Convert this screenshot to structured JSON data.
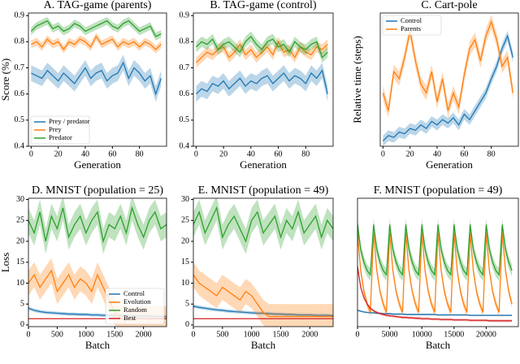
{
  "chart_data": [
    {
      "type": "line",
      "title": "A. TAG-game (parents)",
      "xlabel": "Generation",
      "ylabel": "Score (%)",
      "x": [
        0,
        4,
        8,
        12,
        16,
        20,
        24,
        28,
        32,
        36,
        40,
        44,
        48,
        52,
        56,
        60,
        64,
        68,
        72,
        76,
        80,
        84,
        88,
        92,
        96
      ],
      "xlim": [
        -2,
        100
      ],
      "xticks": [
        0,
        20,
        40,
        60,
        80
      ],
      "ylim": [
        0.4,
        0.91
      ],
      "yticks": [
        0.4,
        0.5,
        0.6,
        0.7,
        0.8,
        0.9
      ],
      "legend": "lower left",
      "series": [
        {
          "name": "Prey / predator",
          "color": "#1f77b4",
          "band": 0.03,
          "values": [
            0.68,
            0.67,
            0.66,
            0.69,
            0.67,
            0.65,
            0.68,
            0.66,
            0.64,
            0.67,
            0.7,
            0.66,
            0.68,
            0.69,
            0.65,
            0.67,
            0.68,
            0.72,
            0.66,
            0.7,
            0.68,
            0.65,
            0.67,
            0.6,
            0.66
          ]
        },
        {
          "name": "Prey",
          "color": "#ff7f0e",
          "band": 0.015,
          "values": [
            0.79,
            0.8,
            0.78,
            0.81,
            0.79,
            0.8,
            0.77,
            0.8,
            0.79,
            0.81,
            0.8,
            0.78,
            0.82,
            0.79,
            0.8,
            0.81,
            0.78,
            0.8,
            0.79,
            0.8,
            0.78,
            0.8,
            0.79,
            0.77,
            0.79
          ]
        },
        {
          "name": "Predator",
          "color": "#2ca02c",
          "band": 0.015,
          "values": [
            0.84,
            0.86,
            0.87,
            0.88,
            0.85,
            0.86,
            0.84,
            0.85,
            0.87,
            0.86,
            0.84,
            0.85,
            0.86,
            0.87,
            0.88,
            0.86,
            0.85,
            0.87,
            0.88,
            0.86,
            0.84,
            0.85,
            0.86,
            0.82,
            0.83
          ]
        }
      ]
    },
    {
      "type": "line",
      "title": "B. TAG-game (control)",
      "xlabel": "Generation",
      "x": [
        0,
        4,
        8,
        12,
        16,
        20,
        24,
        28,
        32,
        36,
        40,
        44,
        48,
        52,
        56,
        60,
        64,
        68,
        72,
        76,
        80,
        84,
        88,
        92,
        96
      ],
      "xlim": [
        -2,
        100
      ],
      "xticks": [
        0,
        20,
        40,
        60,
        80
      ],
      "ylim": [
        0.4,
        0.91
      ],
      "yticks": [
        0.4,
        0.5,
        0.6,
        0.7,
        0.8,
        0.9
      ],
      "series": [
        {
          "color": "#1f77b4",
          "band": 0.03,
          "values": [
            0.6,
            0.62,
            0.61,
            0.64,
            0.63,
            0.65,
            0.62,
            0.64,
            0.66,
            0.63,
            0.65,
            0.64,
            0.66,
            0.67,
            0.64,
            0.66,
            0.68,
            0.65,
            0.67,
            0.66,
            0.64,
            0.68,
            0.66,
            0.69,
            0.6
          ]
        },
        {
          "color": "#ff7f0e",
          "band": 0.02,
          "values": [
            0.72,
            0.74,
            0.76,
            0.75,
            0.77,
            0.78,
            0.74,
            0.76,
            0.79,
            0.75,
            0.77,
            0.74,
            0.76,
            0.78,
            0.75,
            0.8,
            0.76,
            0.77,
            0.74,
            0.78,
            0.76,
            0.75,
            0.78,
            0.77,
            0.79
          ]
        },
        {
          "color": "#2ca02c",
          "band": 0.02,
          "values": [
            0.78,
            0.8,
            0.79,
            0.81,
            0.77,
            0.79,
            0.8,
            0.78,
            0.76,
            0.8,
            0.82,
            0.79,
            0.77,
            0.8,
            0.81,
            0.78,
            0.79,
            0.76,
            0.8,
            0.78,
            0.77,
            0.79,
            0.8,
            0.74,
            0.76
          ]
        }
      ]
    },
    {
      "type": "line",
      "title": "C. Cart-pole",
      "xlabel": "Generation",
      "ylabel": "Relative time (steps)",
      "x": [
        0,
        4,
        8,
        12,
        16,
        20,
        24,
        28,
        32,
        36,
        40,
        44,
        48,
        52,
        56,
        60,
        64,
        68,
        72,
        76,
        80,
        84,
        88,
        92,
        96
      ],
      "xlim": [
        -2,
        100
      ],
      "xticks": [
        0,
        20,
        40,
        60,
        80
      ],
      "ylim": [
        0,
        0.75
      ],
      "legend": "upper left",
      "series": [
        {
          "name": "Control",
          "color": "#1f77b4",
          "band": 0.03,
          "values": [
            0.03,
            0.06,
            0.05,
            0.08,
            0.07,
            0.1,
            0.09,
            0.12,
            0.1,
            0.14,
            0.12,
            0.15,
            0.13,
            0.16,
            0.12,
            0.18,
            0.15,
            0.2,
            0.25,
            0.3,
            0.38,
            0.45,
            0.55,
            0.62,
            0.5
          ]
        },
        {
          "name": "Parents",
          "color": "#ff7f0e",
          "band": 0.04,
          "values": [
            0.3,
            0.2,
            0.42,
            0.38,
            0.5,
            0.65,
            0.48,
            0.35,
            0.3,
            0.42,
            0.25,
            0.38,
            0.2,
            0.3,
            0.22,
            0.4,
            0.55,
            0.6,
            0.48,
            0.62,
            0.7,
            0.6,
            0.45,
            0.5,
            0.3
          ]
        }
      ]
    },
    {
      "type": "line",
      "title": "D. MNIST (population = 25)",
      "xlabel": "Batch",
      "ylabel": "Loss",
      "x": [
        0,
        100,
        200,
        300,
        400,
        500,
        600,
        700,
        800,
        900,
        1000,
        1100,
        1200,
        1300,
        1400,
        1500,
        1600,
        1700,
        1800,
        1900,
        2000,
        2100,
        2200,
        2300,
        2400
      ],
      "xlim": [
        0,
        2400
      ],
      "xticks": [
        0,
        500,
        1000,
        1500,
        2000
      ],
      "ylim": [
        -0.4,
        30.3
      ],
      "yticks": [
        0,
        5,
        10,
        15,
        20,
        25,
        30
      ],
      "legend": "lower right",
      "series": [
        {
          "name": "Control",
          "color": "#1f77b4",
          "band": 0.4,
          "values": [
            4,
            3.5,
            3.2,
            3.0,
            2.9,
            2.8,
            2.7,
            2.6,
            2.6,
            2.5,
            2.5,
            2.4,
            2.4,
            2.3,
            2.3,
            2.3,
            2.2,
            2.2,
            2.2,
            2.1,
            2.1,
            2.1,
            2.0,
            2.0,
            2.0
          ]
        },
        {
          "name": "Evolution",
          "color": "#ff7f0e",
          "band": 3,
          "values": [
            10,
            12,
            9,
            11,
            13,
            8,
            10,
            12,
            9,
            11,
            10,
            8,
            12,
            9,
            6,
            3,
            1.5,
            1.5,
            1.4,
            1.5,
            1.5,
            1.4,
            1.5,
            1.5,
            1.5
          ]
        },
        {
          "name": "Random",
          "color": "#2ca02c",
          "band": 3,
          "values": [
            25,
            22,
            27,
            20,
            26,
            23,
            28,
            21,
            24,
            26,
            22,
            25,
            27,
            20,
            24,
            23,
            26,
            22,
            28,
            24,
            21,
            25,
            27,
            23,
            24
          ]
        },
        {
          "name": "Best",
          "color": "#d62728",
          "band": 0.1,
          "values": [
            1.5,
            1.5,
            1.5,
            1.5,
            1.5,
            1.5,
            1.5,
            1.5,
            1.5,
            1.5,
            1.5,
            1.5,
            1.5,
            1.5,
            1.5,
            1.5,
            1.5,
            1.5,
            1.5,
            1.5,
            1.5,
            1.5,
            1.5,
            1.5,
            1.5
          ]
        }
      ]
    },
    {
      "type": "line",
      "title": "E. MNIST (population = 49)",
      "xlabel": "Batch",
      "x": [
        0,
        100,
        200,
        300,
        400,
        500,
        600,
        700,
        800,
        900,
        1000,
        1100,
        1200,
        1300,
        1400,
        1500,
        1600,
        1700,
        1800,
        1900,
        2000,
        2100,
        2200,
        2300,
        2400
      ],
      "xlim": [
        0,
        2400
      ],
      "xticks": [
        0,
        500,
        1000,
        1500,
        2000
      ],
      "ylim": [
        -0.4,
        30.3
      ],
      "yticks": [
        0,
        5,
        10,
        15,
        20,
        25,
        30
      ],
      "series": [
        {
          "color": "#1f77b4",
          "band": 0.4,
          "values": [
            4.5,
            4.2,
            4.0,
            3.8,
            3.6,
            3.5,
            3.3,
            3.2,
            3.1,
            3.0,
            2.9,
            2.8,
            2.8,
            2.7,
            2.6,
            2.6,
            2.5,
            2.5,
            2.4,
            2.4,
            2.4,
            2.3,
            2.3,
            2.3,
            2.2
          ]
        },
        {
          "color": "#ff7f0e",
          "band": 3,
          "values": [
            12,
            10,
            9,
            8,
            7,
            9,
            8,
            7,
            6,
            8,
            7,
            5,
            3,
            2,
            2,
            2,
            2,
            2,
            2,
            2,
            2,
            2,
            2,
            2,
            2
          ]
        },
        {
          "color": "#2ca02c",
          "band": 3,
          "values": [
            24,
            27,
            22,
            25,
            28,
            21,
            24,
            26,
            23,
            20,
            25,
            27,
            22,
            24,
            26,
            21,
            25,
            23,
            27,
            22,
            24,
            26,
            21,
            25,
            23
          ]
        },
        {
          "color": "#d62728",
          "band": 0.1,
          "values": [
            1.5,
            1.5,
            1.5,
            1.5,
            1.5,
            1.5,
            1.5,
            1.5,
            1.5,
            1.5,
            1.5,
            1.5,
            1.5,
            1.5,
            1.5,
            1.5,
            1.5,
            1.5,
            1.5,
            1.5,
            1.5,
            1.5,
            1.5,
            1.5,
            1.5
          ]
        }
      ]
    },
    {
      "type": "line",
      "title": "F. MNIST (population = 49)",
      "xlabel": "Batch",
      "x": [
        0,
        500,
        1000,
        1500,
        2000,
        2500,
        3000,
        3500,
        4000,
        4500,
        5000,
        5500,
        6000,
        6500,
        7000,
        7500,
        8000,
        8500,
        9000,
        9500,
        10000,
        10500,
        11000,
        11500,
        12000,
        12500,
        13000,
        13500,
        14000,
        14500,
        15000,
        15500,
        16000,
        16500,
        17000,
        17500,
        18000,
        18500,
        19000,
        19500,
        20000,
        20500,
        21000,
        21500,
        22000,
        22500,
        23000,
        23500,
        24000
      ],
      "xlim": [
        0,
        25000
      ],
      "xticks": [
        0,
        5000,
        10000,
        15000,
        20000
      ],
      "ylim": [
        -0.4,
        30.3
      ],
      "series": [
        {
          "color": "#1f77b4",
          "band": 0.2,
          "values": [
            3.5,
            3.3,
            3.1,
            3.0,
            2.9,
            2.9,
            2.8,
            2.8,
            2.7,
            2.7,
            2.7,
            2.6,
            2.6,
            2.6,
            2.6,
            2.5,
            2.5,
            2.5,
            2.5,
            2.5,
            2.5,
            2.5,
            2.5,
            2.5,
            2.5,
            2.4,
            2.4,
            2.4,
            2.4,
            2.4,
            2.4,
            2.4,
            2.4,
            2.4,
            2.4,
            2.3,
            2.3,
            2.3,
            2.3,
            2.3,
            2.3,
            2.3,
            2.3,
            2.3,
            2.3,
            2.3,
            2.3,
            2.3,
            2.3
          ]
        },
        {
          "color": "#ff7f0e",
          "band": 1,
          "values": [
            22,
            13,
            8,
            5,
            3,
            22,
            13,
            8,
            5,
            3,
            22,
            13,
            8,
            5,
            3,
            22,
            13,
            8,
            5,
            3,
            22,
            13,
            8,
            5,
            3,
            22,
            13,
            8,
            5,
            3,
            22,
            13,
            8,
            5,
            3,
            22,
            13,
            8,
            5,
            3,
            22,
            13,
            8,
            5,
            3,
            22,
            13,
            8,
            5
          ]
        },
        {
          "color": "#2ca02c",
          "band": 1.5,
          "values": [
            24,
            18,
            15,
            13,
            12,
            24,
            18,
            15,
            13,
            12,
            24,
            18,
            15,
            13,
            12,
            24,
            18,
            15,
            13,
            12,
            24,
            18,
            15,
            13,
            12,
            24,
            18,
            15,
            13,
            12,
            24,
            18,
            15,
            13,
            12,
            24,
            18,
            15,
            13,
            12,
            24,
            18,
            15,
            13,
            12,
            24,
            18,
            15,
            13
          ]
        },
        {
          "color": "#d62728",
          "band": 0.3,
          "values": [
            14,
            9,
            6.5,
            5,
            4,
            3.4,
            3,
            2.7,
            2.5,
            2.3,
            2.2,
            2.1,
            2,
            1.9,
            1.8,
            1.8,
            1.7,
            1.7,
            1.6,
            1.6,
            1.5,
            1.5,
            1.5,
            1.4,
            1.4,
            1.4,
            1.3,
            1.3,
            1.3,
            1.3,
            1.2,
            1.2,
            1.2,
            1.2,
            1.2,
            1.1,
            1.1,
            1.1,
            1.1,
            1.1,
            1.1,
            1.0,
            1.0,
            1.0,
            1.0,
            1.0,
            1.0,
            1.0,
            1.0
          ]
        }
      ]
    }
  ]
}
